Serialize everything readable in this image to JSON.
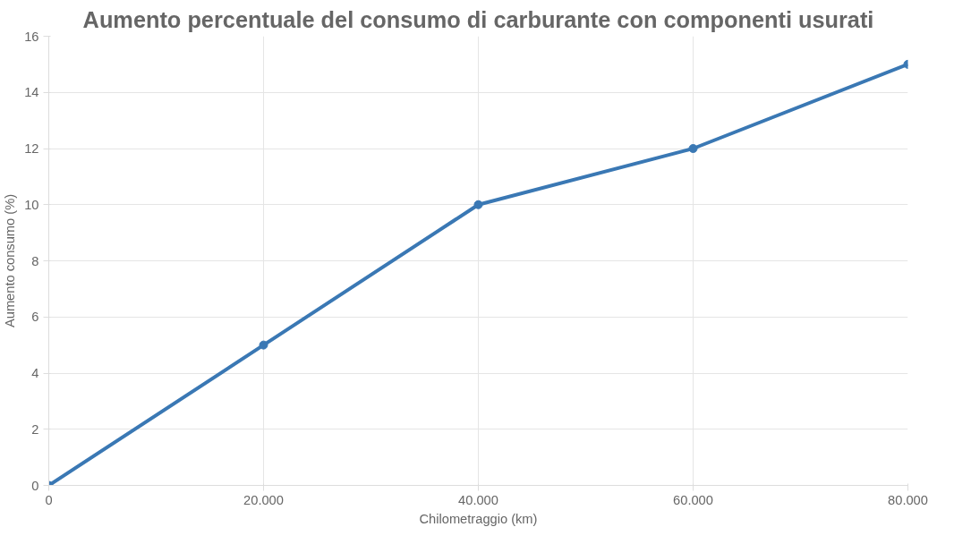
{
  "chart_data": {
    "type": "line",
    "title": "Aumento percentuale del consumo di carburante con componenti usurati",
    "xlabel": "Chilometraggio (km)",
    "ylabel": "Aumento consumo (%)",
    "x": [
      0,
      20000,
      40000,
      60000,
      80000
    ],
    "series": [
      {
        "color": "#3a78b4",
        "values": [
          0,
          5,
          10,
          12,
          15
        ]
      }
    ],
    "xlim": [
      0,
      80000
    ],
    "xticks": [
      0,
      {
        "value": 20000,
        "label": "20.000"
      },
      {
        "value": 40000,
        "label": "40.000"
      },
      {
        "value": 60000,
        "label": "60.000"
      },
      {
        "value": 80000,
        "label": "80.000"
      }
    ],
    "ylim": [
      0,
      16
    ],
    "yticks": [
      0,
      2,
      4,
      6,
      8,
      10,
      12,
      14,
      16
    ],
    "grid": true,
    "marker": "circle",
    "line_style": "solid"
  }
}
